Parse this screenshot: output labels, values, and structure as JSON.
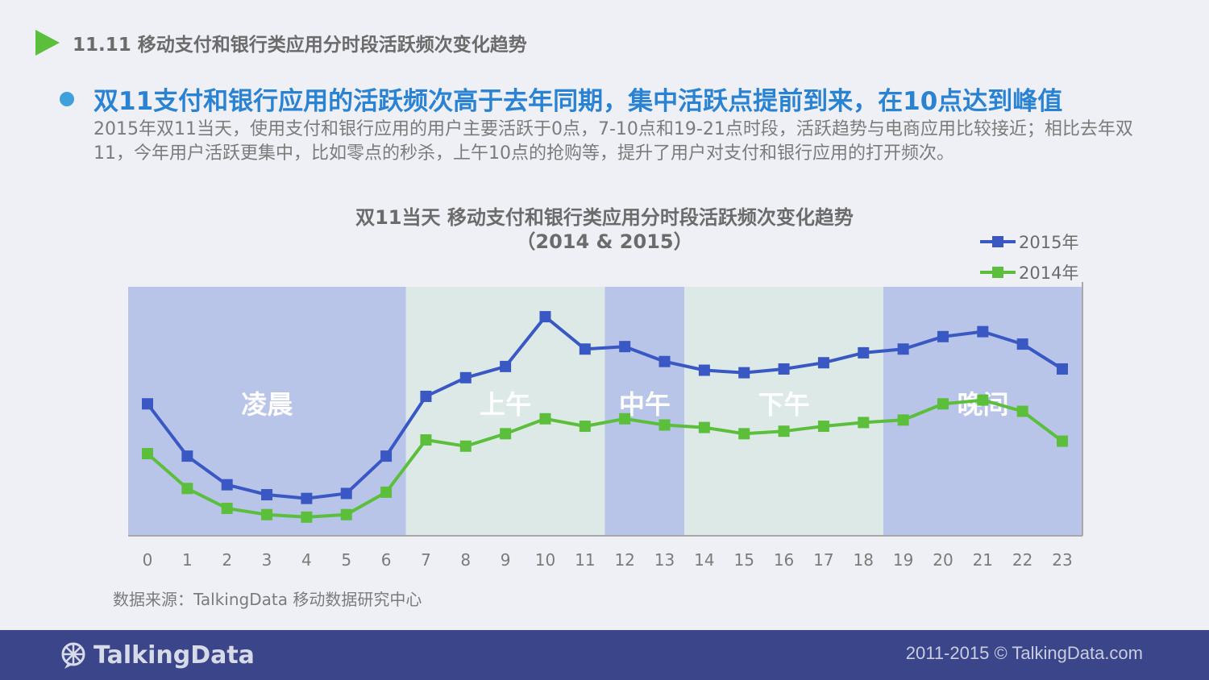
{
  "header": {
    "title": "11.11 移动支付和银行类应用分时段活跃频次变化趋势"
  },
  "headline": "双11支付和银行应用的活跃频次高于去年同期，集中活跃点提前到来，在10点达到峰值",
  "description": "2015年双11当天，使用支付和银行应用的用户主要活跃于0点，7-10点和19-21点时段，活跃趋势与电商应用比较接近；相比去年双11，今年用户活跃更集中，比如零点的秒杀，上午10点的抢购等，提升了用户对支付和银行应用的打开频次。",
  "chart_data": {
    "type": "line",
    "title": "双11当天 移动支付和银行类应用分时段活跃频次变化趋势",
    "subtitle": "（2014 & 2015）",
    "x": [
      "0",
      "1",
      "2",
      "3",
      "4",
      "5",
      "6",
      "7",
      "8",
      "9",
      "10",
      "11",
      "12",
      "13",
      "14",
      "15",
      "16",
      "17",
      "18",
      "19",
      "20",
      "21",
      "22",
      "23"
    ],
    "ylim": [
      0,
      100
    ],
    "series": [
      {
        "name": "2015年",
        "color": "#3a58c4",
        "values": [
          53,
          32,
          20.5,
          16.5,
          15,
          17,
          32,
          56,
          63.5,
          68,
          88,
          75,
          76,
          70,
          66.5,
          65.5,
          67,
          69.5,
          73.5,
          75,
          80,
          82,
          77,
          67
        ]
      },
      {
        "name": "2014年",
        "color": "#5cbf3c",
        "values": [
          33,
          19,
          11,
          8.5,
          7.5,
          8.5,
          17.5,
          38.5,
          36,
          41,
          47,
          44,
          47,
          44.5,
          43.5,
          41,
          42,
          44,
          45.5,
          46.5,
          53,
          54.5,
          50,
          38
        ]
      }
    ],
    "periods": [
      {
        "label": "凌晨",
        "from": 0,
        "to": 6,
        "color": "#b8c4e8"
      },
      {
        "label": "上午",
        "from": 7,
        "to": 11,
        "color": "#dde9e6"
      },
      {
        "label": "中午",
        "from": 12,
        "to": 13,
        "color": "#b8c4e8"
      },
      {
        "label": "下午",
        "from": 14,
        "to": 18,
        "color": "#dde9e6"
      },
      {
        "label": "晚间",
        "from": 19,
        "to": 23,
        "color": "#b8c4e8"
      }
    ],
    "legend_position": "top-right",
    "grid": false
  },
  "source": "数据来源：TalkingData 移动数据研究中心",
  "footer": {
    "logo_text": "TalkingData",
    "copyright": "2011-2015 © TalkingData.com"
  },
  "colors": {
    "accent_green": "#5cbf3c",
    "headline_blue": "#2a82d3",
    "footer_bg": "#3b4589"
  },
  "icons": {
    "logo": "talkingdata-logo-icon",
    "header_marker": "play-triangle-icon"
  }
}
